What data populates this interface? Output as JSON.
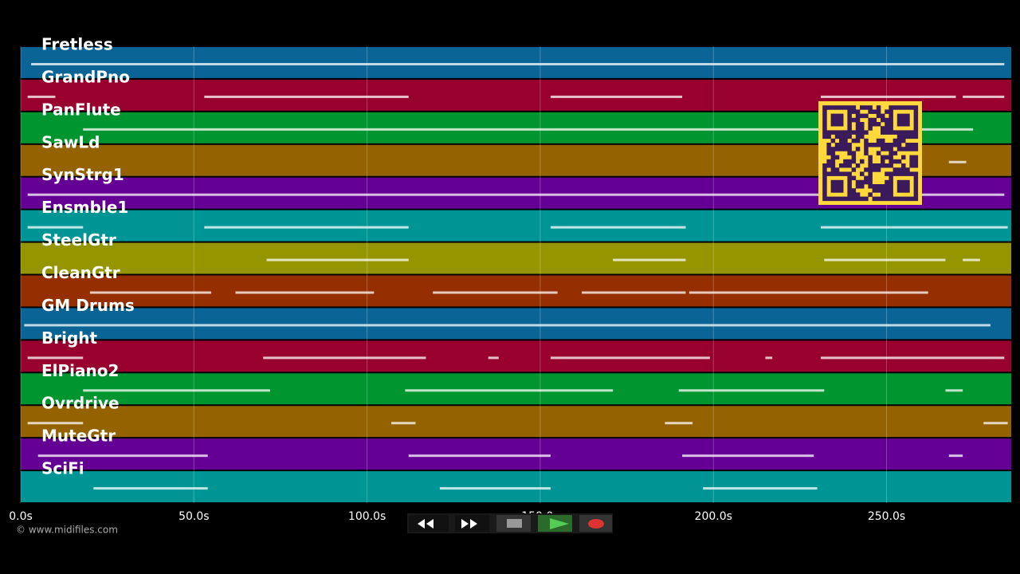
{
  "tracks": [
    {
      "name": "Fretless",
      "color": "#0a6496",
      "notes": [
        [
          3,
          284
        ]
      ]
    },
    {
      "name": "GrandPno",
      "color": "#98002e",
      "notes": [
        [
          2,
          10
        ],
        [
          53,
          112
        ],
        [
          153,
          191
        ],
        [
          231,
          270
        ],
        [
          272,
          284
        ]
      ]
    },
    {
      "name": "PanFlute",
      "color": "#00952e",
      "notes": [
        [
          18,
          275
        ]
      ]
    },
    {
      "name": "SawLd",
      "color": "#956200",
      "notes": [
        [
          268,
          273
        ]
      ]
    },
    {
      "name": "SynStrg1",
      "color": "#650095",
      "notes": [
        [
          2,
          284
        ]
      ]
    },
    {
      "name": "Ensmble1",
      "color": "#009595",
      "notes": [
        [
          2,
          18
        ],
        [
          53,
          112
        ],
        [
          153,
          192
        ],
        [
          231,
          285
        ]
      ]
    },
    {
      "name": "SteelGtr",
      "color": "#959500",
      "notes": [
        [
          71,
          112
        ],
        [
          171,
          192
        ],
        [
          232,
          267
        ],
        [
          272,
          277
        ]
      ]
    },
    {
      "name": "CleanGtr",
      "color": "#952e00",
      "notes": [
        [
          20,
          55
        ],
        [
          62,
          102
        ],
        [
          119,
          155
        ],
        [
          162,
          192
        ],
        [
          193,
          262
        ]
      ]
    },
    {
      "name": "GM Drums",
      "color": "#0a6496",
      "notes": [
        [
          1,
          280
        ]
      ]
    },
    {
      "name": "Bright",
      "color": "#98002e",
      "notes": [
        [
          2,
          18
        ],
        [
          70,
          117
        ],
        [
          135,
          138
        ],
        [
          153,
          199
        ],
        [
          215,
          217
        ],
        [
          231,
          284
        ]
      ]
    },
    {
      "name": "ElPiano2",
      "color": "#00952e",
      "notes": [
        [
          18,
          72
        ],
        [
          111,
          171
        ],
        [
          190,
          232
        ],
        [
          267,
          272
        ]
      ]
    },
    {
      "name": "Ovrdrive",
      "color": "#956200",
      "notes": [
        [
          2,
          18
        ],
        [
          107,
          114
        ],
        [
          186,
          194
        ],
        [
          278,
          285
        ]
      ]
    },
    {
      "name": "MuteGtr",
      "color": "#650095",
      "notes": [
        [
          5,
          54
        ],
        [
          112,
          153
        ],
        [
          191,
          229
        ],
        [
          268,
          272
        ]
      ]
    },
    {
      "name": "SciFi",
      "color": "#009595",
      "notes": [
        [
          21,
          54
        ],
        [
          121,
          153
        ],
        [
          197,
          230
        ]
      ]
    }
  ],
  "axis": {
    "xlim": [
      0,
      286
    ],
    "xticks": [
      {
        "value": 0,
        "label": "0.0s"
      },
      {
        "value": 50,
        "label": "50.0s"
      },
      {
        "value": 100,
        "label": "100.0s"
      },
      {
        "value": 150,
        "label": "150.0s"
      },
      {
        "value": 200,
        "label": "200.0s"
      },
      {
        "value": 250,
        "label": "250.0s"
      }
    ]
  },
  "footer": "© www.midifiles.com"
}
